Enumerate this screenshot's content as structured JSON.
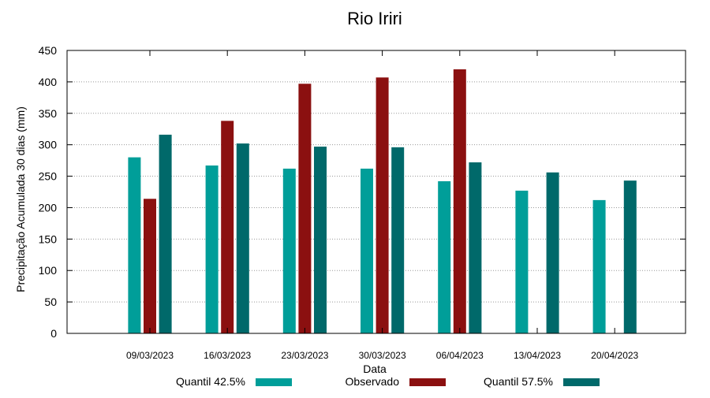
{
  "chart_data": {
    "type": "bar",
    "title": "Rio Iriri",
    "xlabel": "Data",
    "ylabel": "Precipitação Acumulada 30 dias (mm)",
    "ylim": [
      0,
      450
    ],
    "yticks": [
      0,
      50,
      100,
      150,
      200,
      250,
      300,
      350,
      400,
      450
    ],
    "grid": true,
    "legend_position": "bottom",
    "categories": [
      "09/03/2023",
      "16/03/2023",
      "23/03/2023",
      "30/03/2023",
      "06/04/2023",
      "13/04/2023",
      "20/04/2023"
    ],
    "series": [
      {
        "name": "Quantil 42.5%",
        "color": "#009e99",
        "values": [
          280,
          267,
          262,
          262,
          242,
          227,
          212
        ]
      },
      {
        "name": "Observado",
        "color": "#8b1010",
        "values": [
          214,
          338,
          397,
          407,
          420,
          null,
          null
        ]
      },
      {
        "name": "Quantil 57.5%",
        "color": "#00696a",
        "values": [
          316,
          302,
          297,
          296,
          272,
          256,
          243
        ]
      }
    ]
  }
}
